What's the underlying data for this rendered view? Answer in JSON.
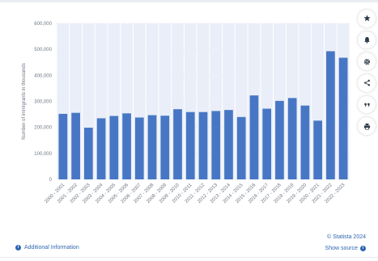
{
  "chart_data": {
    "type": "bar",
    "ylabel": "Number of immigrants in thousands",
    "xlabel": "",
    "ylim": [
      0,
      600000
    ],
    "yticks": [
      "0",
      "100,000",
      "200,000",
      "300,000",
      "400,000",
      "500,000",
      "600,000"
    ],
    "grid": true,
    "bar_color": "#4777c4",
    "categories": [
      "2000 - 2001",
      "2001 - 2002",
      "2002 - 2003",
      "2003 - 2004",
      "2004 - 2005",
      "2005 - 2006",
      "2006 - 2007",
      "2007 - 2008",
      "2008 - 2009",
      "2009 - 2010",
      "2010 - 2011",
      "2011 - 2012",
      "2012 - 2013",
      "2013 - 2014",
      "2014 - 2015",
      "2015 - 2016",
      "2016 - 2017",
      "2017 - 2018",
      "2018 - 2019",
      "2019 - 2020",
      "2020 - 2021",
      "2021 - 2022",
      "2022 - 2023"
    ],
    "values": [
      252000,
      256000,
      199000,
      235000,
      244000,
      254000,
      238000,
      247000,
      245000,
      270000,
      259000,
      259000,
      263000,
      267000,
      240000,
      323000,
      272000,
      302000,
      313000,
      284000,
      226000,
      493000,
      468000
    ]
  },
  "toolbar": {
    "buttons": [
      "star-icon",
      "bell-icon",
      "gear-icon",
      "share-icon",
      "quote-icon",
      "print-icon"
    ]
  },
  "footer": {
    "additional_info": "Additional Information",
    "copyright": "© Statista 2024",
    "show_source": "Show source"
  },
  "colors": {
    "accent": "#2f67b2",
    "bar": "#4777c4",
    "plot_band": "#e9eef8"
  }
}
